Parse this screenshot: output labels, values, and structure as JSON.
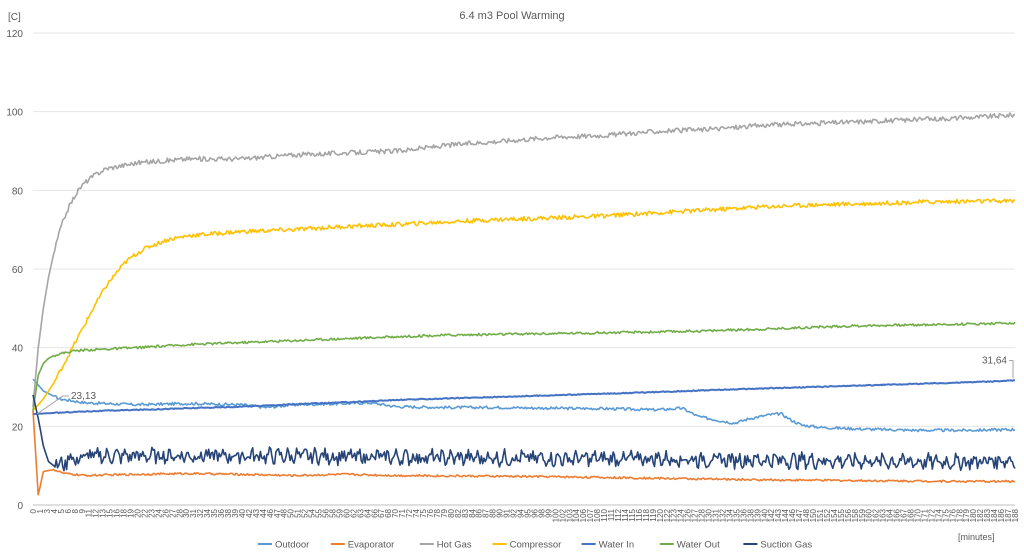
{
  "chart_data": {
    "type": "line",
    "title": "6.4 m3 Pool Warming",
    "ylabel": "[C]",
    "xlabel": "[minutes]",
    "ylim": [
      0,
      120
    ],
    "yticks": [
      0,
      20,
      40,
      60,
      80,
      100,
      120
    ],
    "xlim": [
      0,
      189
    ],
    "xtick_labels": [
      "0",
      "1",
      "3",
      "4",
      "5",
      "6",
      "8",
      "9",
      "11",
      "12",
      "13",
      "15",
      "16",
      "18",
      "19",
      "20",
      "22",
      "23",
      "24",
      "26",
      "27",
      "28",
      "30",
      "31",
      "32",
      "34",
      "35",
      "36",
      "38",
      "39",
      "40",
      "42",
      "43",
      "44",
      "46",
      "47",
      "48",
      "50",
      "51",
      "52",
      "54",
      "55",
      "56",
      "58",
      "59",
      "60",
      "62",
      "63",
      "64",
      "66",
      "67",
      "68",
      "70",
      "71",
      "72",
      "74",
      "75",
      "76",
      "78",
      "79",
      "80",
      "82",
      "83",
      "84",
      "86",
      "87",
      "88",
      "90",
      "91",
      "92",
      "94",
      "95",
      "96",
      "98",
      "99",
      "100",
      "102",
      "103",
      "104",
      "106",
      "107",
      "108",
      "110",
      "111",
      "112",
      "114",
      "115",
      "116",
      "118",
      "119",
      "120",
      "122",
      "123",
      "124",
      "126",
      "127",
      "128",
      "130",
      "131",
      "132",
      "134",
      "135",
      "136",
      "138",
      "139",
      "140",
      "142",
      "143",
      "144",
      "146",
      "147",
      "148",
      "150",
      "151",
      "152",
      "154",
      "155",
      "156",
      "158",
      "159",
      "160",
      "162",
      "163",
      "164",
      "166",
      "167",
      "168",
      "170",
      "171",
      "172",
      "174",
      "175",
      "176",
      "178",
      "179",
      "180",
      "182",
      "183",
      "184",
      "186",
      "187",
      "188"
    ],
    "xtick_label_step": 2,
    "grid": "horizontal",
    "legend_position": "bottom",
    "annotations": [
      {
        "text": "23,13",
        "series": "Water In",
        "x": 0
      },
      {
        "text": "31,64",
        "series": "Water In",
        "x": 189
      }
    ],
    "series": [
      {
        "name": "Outdoor",
        "color": "#5B9BD5",
        "points": [
          [
            0,
            32
          ],
          [
            2,
            29
          ],
          [
            5,
            27
          ],
          [
            10,
            26
          ],
          [
            20,
            25.5
          ],
          [
            30,
            25.8
          ],
          [
            40,
            25.5
          ],
          [
            45,
            24.8
          ],
          [
            50,
            25.5
          ],
          [
            60,
            25.8
          ],
          [
            65,
            26
          ],
          [
            70,
            25
          ],
          [
            80,
            24.8
          ],
          [
            90,
            24.8
          ],
          [
            100,
            24.6
          ],
          [
            110,
            24.5
          ],
          [
            120,
            24.2
          ],
          [
            125,
            24.6
          ],
          [
            128,
            22.5
          ],
          [
            132,
            21.5
          ],
          [
            135,
            20.8
          ],
          [
            138,
            22
          ],
          [
            142,
            23
          ],
          [
            144,
            23.2
          ],
          [
            146,
            21.5
          ],
          [
            148,
            20.3
          ],
          [
            152,
            19.7
          ],
          [
            160,
            19.3
          ],
          [
            170,
            19
          ],
          [
            180,
            19
          ],
          [
            189,
            19.2
          ]
        ]
      },
      {
        "name": "Evaporator",
        "color": "#ED7D31",
        "points": [
          [
            0,
            24
          ],
          [
            1,
            2.5
          ],
          [
            2,
            8.5
          ],
          [
            4,
            9
          ],
          [
            6,
            8
          ],
          [
            10,
            7.5
          ],
          [
            20,
            7.8
          ],
          [
            30,
            8
          ],
          [
            40,
            7.8
          ],
          [
            50,
            7.5
          ],
          [
            60,
            7.8
          ],
          [
            70,
            7.5
          ],
          [
            80,
            7.4
          ],
          [
            90,
            7.3
          ],
          [
            100,
            7.2
          ],
          [
            110,
            7
          ],
          [
            120,
            6.8
          ],
          [
            130,
            6.6
          ],
          [
            140,
            6.4
          ],
          [
            150,
            6.3
          ],
          [
            160,
            6.2
          ],
          [
            170,
            6.1
          ],
          [
            180,
            6.0
          ],
          [
            189,
            6.0
          ]
        ]
      },
      {
        "name": "Hot Gas",
        "color": "#A5A5A5",
        "points": [
          [
            0,
            25
          ],
          [
            1,
            40
          ],
          [
            2,
            50
          ],
          [
            3,
            58
          ],
          [
            4,
            64
          ],
          [
            5,
            69
          ],
          [
            6,
            73
          ],
          [
            7,
            76
          ],
          [
            8,
            78.5
          ],
          [
            9,
            80.5
          ],
          [
            10,
            82
          ],
          [
            12,
            84
          ],
          [
            14,
            85.5
          ],
          [
            16,
            86
          ],
          [
            18,
            86.5
          ],
          [
            20,
            87
          ],
          [
            25,
            87.5
          ],
          [
            30,
            88
          ],
          [
            35,
            88
          ],
          [
            40,
            88
          ],
          [
            50,
            89
          ],
          [
            60,
            89.5
          ],
          [
            70,
            90
          ],
          [
            80,
            91.5
          ],
          [
            90,
            92.5
          ],
          [
            100,
            93.5
          ],
          [
            110,
            94
          ],
          [
            120,
            95
          ],
          [
            130,
            95.5
          ],
          [
            140,
            96.5
          ],
          [
            150,
            97
          ],
          [
            160,
            97.5
          ],
          [
            170,
            98
          ],
          [
            180,
            98.5
          ],
          [
            189,
            99.2
          ]
        ]
      },
      {
        "name": "Compressor",
        "color": "#FFC000",
        "points": [
          [
            0,
            24
          ],
          [
            2,
            27
          ],
          [
            4,
            31
          ],
          [
            6,
            36
          ],
          [
            8,
            41
          ],
          [
            10,
            46
          ],
          [
            12,
            51
          ],
          [
            14,
            55.5
          ],
          [
            16,
            59
          ],
          [
            18,
            62
          ],
          [
            20,
            64
          ],
          [
            22,
            65.5
          ],
          [
            24,
            66.5
          ],
          [
            26,
            67.5
          ],
          [
            28,
            68
          ],
          [
            30,
            68.5
          ],
          [
            35,
            69
          ],
          [
            40,
            69.5
          ],
          [
            50,
            70
          ],
          [
            60,
            70.8
          ],
          [
            70,
            71.3
          ],
          [
            80,
            72
          ],
          [
            90,
            72.6
          ],
          [
            100,
            73
          ],
          [
            110,
            73.5
          ],
          [
            120,
            74.3
          ],
          [
            130,
            75
          ],
          [
            140,
            75.8
          ],
          [
            150,
            76.3
          ],
          [
            160,
            76.6
          ],
          [
            170,
            77
          ],
          [
            180,
            77.2
          ],
          [
            189,
            77.3
          ]
        ]
      },
      {
        "name": "Water In",
        "color": "#4472C4",
        "points": [
          [
            0,
            23.13
          ],
          [
            10,
            23.8
          ],
          [
            20,
            24.2
          ],
          [
            30,
            24.6
          ],
          [
            40,
            25
          ],
          [
            50,
            25.6
          ],
          [
            60,
            26.1
          ],
          [
            70,
            26.7
          ],
          [
            80,
            27.1
          ],
          [
            90,
            27.5
          ],
          [
            100,
            27.9
          ],
          [
            110,
            28.3
          ],
          [
            120,
            28.7
          ],
          [
            130,
            29.2
          ],
          [
            140,
            29.6
          ],
          [
            150,
            30
          ],
          [
            160,
            30.4
          ],
          [
            170,
            30.8
          ],
          [
            180,
            31.2
          ],
          [
            189,
            31.64
          ]
        ]
      },
      {
        "name": "Water Out",
        "color": "#70AD47",
        "points": [
          [
            0,
            24
          ],
          [
            1,
            33
          ],
          [
            2,
            36
          ],
          [
            3,
            37.3
          ],
          [
            4,
            38
          ],
          [
            6,
            38.7
          ],
          [
            8,
            39.2
          ],
          [
            10,
            39.4
          ],
          [
            15,
            39.7
          ],
          [
            20,
            40
          ],
          [
            30,
            40.8
          ],
          [
            40,
            41.3
          ],
          [
            50,
            41.8
          ],
          [
            60,
            42.3
          ],
          [
            70,
            42.8
          ],
          [
            80,
            43.2
          ],
          [
            90,
            43.4
          ],
          [
            100,
            43.6
          ],
          [
            110,
            43.8
          ],
          [
            120,
            44
          ],
          [
            130,
            44.3
          ],
          [
            140,
            44.7
          ],
          [
            150,
            45.2
          ],
          [
            160,
            45.6
          ],
          [
            170,
            45.8
          ],
          [
            180,
            46
          ],
          [
            189,
            46.3
          ]
        ]
      },
      {
        "name": "Suction Gas",
        "color": "#264478",
        "points": [
          [
            0,
            28
          ],
          [
            1,
            22
          ],
          [
            2,
            15
          ],
          [
            3,
            11
          ],
          [
            4,
            10
          ],
          [
            5,
            11
          ],
          [
            6,
            9.5
          ],
          [
            7,
            13
          ],
          [
            8,
            11
          ],
          [
            10,
            12.5
          ],
          [
            20,
            12.5
          ],
          [
            30,
            12.5
          ],
          [
            40,
            12.5
          ],
          [
            50,
            12.5
          ],
          [
            60,
            12.3
          ],
          [
            70,
            12.2
          ],
          [
            80,
            12
          ],
          [
            90,
            12
          ],
          [
            100,
            11.8
          ],
          [
            110,
            11.8
          ],
          [
            120,
            11.8
          ],
          [
            130,
            11.5
          ],
          [
            140,
            11.5
          ],
          [
            150,
            11.3
          ],
          [
            160,
            11.2
          ],
          [
            170,
            11
          ],
          [
            180,
            11
          ],
          [
            189,
            11.5
          ]
        ]
      }
    ]
  }
}
